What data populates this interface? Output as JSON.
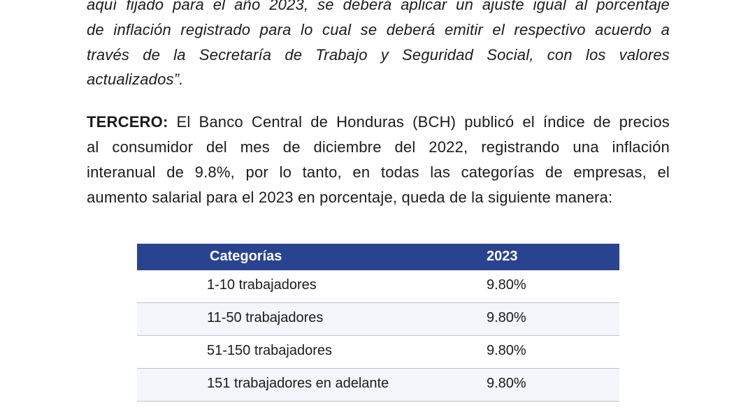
{
  "quote_lines": [
    "aquí fijado para el año 2023, se deberá aplicar un ajuste igual al porcentaje",
    "de inflación registrado para lo cual se deberá emitir el respectivo acuerdo a",
    "través de la Secretaría de Trabajo y Seguridad Social, con los valores",
    "actualizados”."
  ],
  "tercero": {
    "label": "TERCERO:",
    "lines": [
      " El Banco Central de Honduras (BCH) publicó el índice de precios",
      "al consumidor del mes de diciembre del 2022, registrando una inflación",
      "interanual de 9.8%, por lo tanto, en todas las categorías de empresas, el",
      "aumento salarial para el 2023 en porcentaje, queda de la siguiente manera:"
    ]
  },
  "table": {
    "headers": [
      "Categorías",
      "2023"
    ],
    "rows": [
      [
        "1-10 trabajadores",
        "9.80%"
      ],
      [
        "11-50 trabajadores",
        "9.80%"
      ],
      [
        "51-150 trabajadores",
        "9.80%"
      ],
      [
        "151 trabajadores en adelante",
        "9.80%"
      ]
    ],
    "header_color": "#2a4390",
    "alt_row_color": "#f3f5fa"
  }
}
